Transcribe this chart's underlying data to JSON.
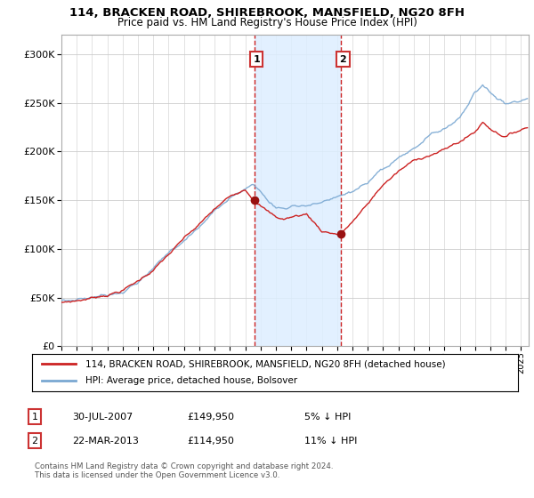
{
  "title": "114, BRACKEN ROAD, SHIREBROOK, MANSFIELD, NG20 8FH",
  "subtitle": "Price paid vs. HM Land Registry's House Price Index (HPI)",
  "legend_line1": "114, BRACKEN ROAD, SHIREBROOK, MANSFIELD, NG20 8FH (detached house)",
  "legend_line2": "HPI: Average price, detached house, Bolsover",
  "annotation1": {
    "num": "1",
    "date": "30-JUL-2007",
    "price": "£149,950",
    "info": "5% ↓ HPI"
  },
  "annotation2": {
    "num": "2",
    "date": "22-MAR-2013",
    "price": "£114,950",
    "info": "11% ↓ HPI"
  },
  "footnote1": "Contains HM Land Registry data © Crown copyright and database right 2024.",
  "footnote2": "This data is licensed under the Open Government Licence v3.0.",
  "hpi_color": "#7aa8d2",
  "price_color": "#cc2222",
  "marker_color": "#991111",
  "shading_color": "#ddeeff",
  "vline_color": "#cc2222",
  "ylim": [
    0,
    320000
  ],
  "yticks": [
    0,
    50000,
    100000,
    150000,
    200000,
    250000,
    300000
  ],
  "sale1_x": 2007.58,
  "sale2_x": 2013.23,
  "sale1_y": 149950,
  "sale2_y": 114950,
  "xmin": 1995,
  "xmax": 2025.5,
  "hpi_knots_x": [
    1995,
    1996,
    1997,
    1998,
    1999,
    2000,
    2001,
    2002,
    2003,
    2004,
    2005,
    2006,
    2007,
    2007.5,
    2008,
    2008.5,
    2009,
    2009.5,
    2010,
    2011,
    2012,
    2013,
    2014,
    2015,
    2016,
    2017,
    2018,
    2019,
    2020,
    2021,
    2022,
    2022.5,
    2023,
    2023.5,
    2024,
    2024.5,
    2025,
    2025.5
  ],
  "hpi_knots_y": [
    47000,
    49000,
    52000,
    56000,
    62000,
    72000,
    85000,
    100000,
    115000,
    128000,
    145000,
    158000,
    168000,
    172000,
    165000,
    155000,
    148000,
    148000,
    150000,
    153000,
    155000,
    158000,
    163000,
    170000,
    180000,
    190000,
    198000,
    210000,
    218000,
    230000,
    258000,
    265000,
    258000,
    252000,
    248000,
    250000,
    252000,
    255000
  ],
  "price_knots_x": [
    1995,
    1996,
    1997,
    1998,
    1999,
    2000,
    2001,
    2002,
    2003,
    2004,
    2005,
    2006,
    2007,
    2007.58,
    2008,
    2008.5,
    2009,
    2009.5,
    2010,
    2011,
    2012,
    2013.23,
    2014,
    2015,
    2016,
    2017,
    2018,
    2019,
    2020,
    2021,
    2022,
    2022.5,
    2023,
    2023.5,
    2024,
    2024.5,
    2025,
    2025.5
  ],
  "price_knots_y": [
    45000,
    47000,
    50000,
    54000,
    59000,
    68000,
    80000,
    95000,
    110000,
    123000,
    138000,
    150000,
    160000,
    149950,
    145000,
    138000,
    132000,
    130000,
    132000,
    135000,
    118000,
    114950,
    128000,
    145000,
    165000,
    178000,
    188000,
    195000,
    200000,
    208000,
    218000,
    228000,
    222000,
    218000,
    215000,
    218000,
    222000,
    225000
  ]
}
